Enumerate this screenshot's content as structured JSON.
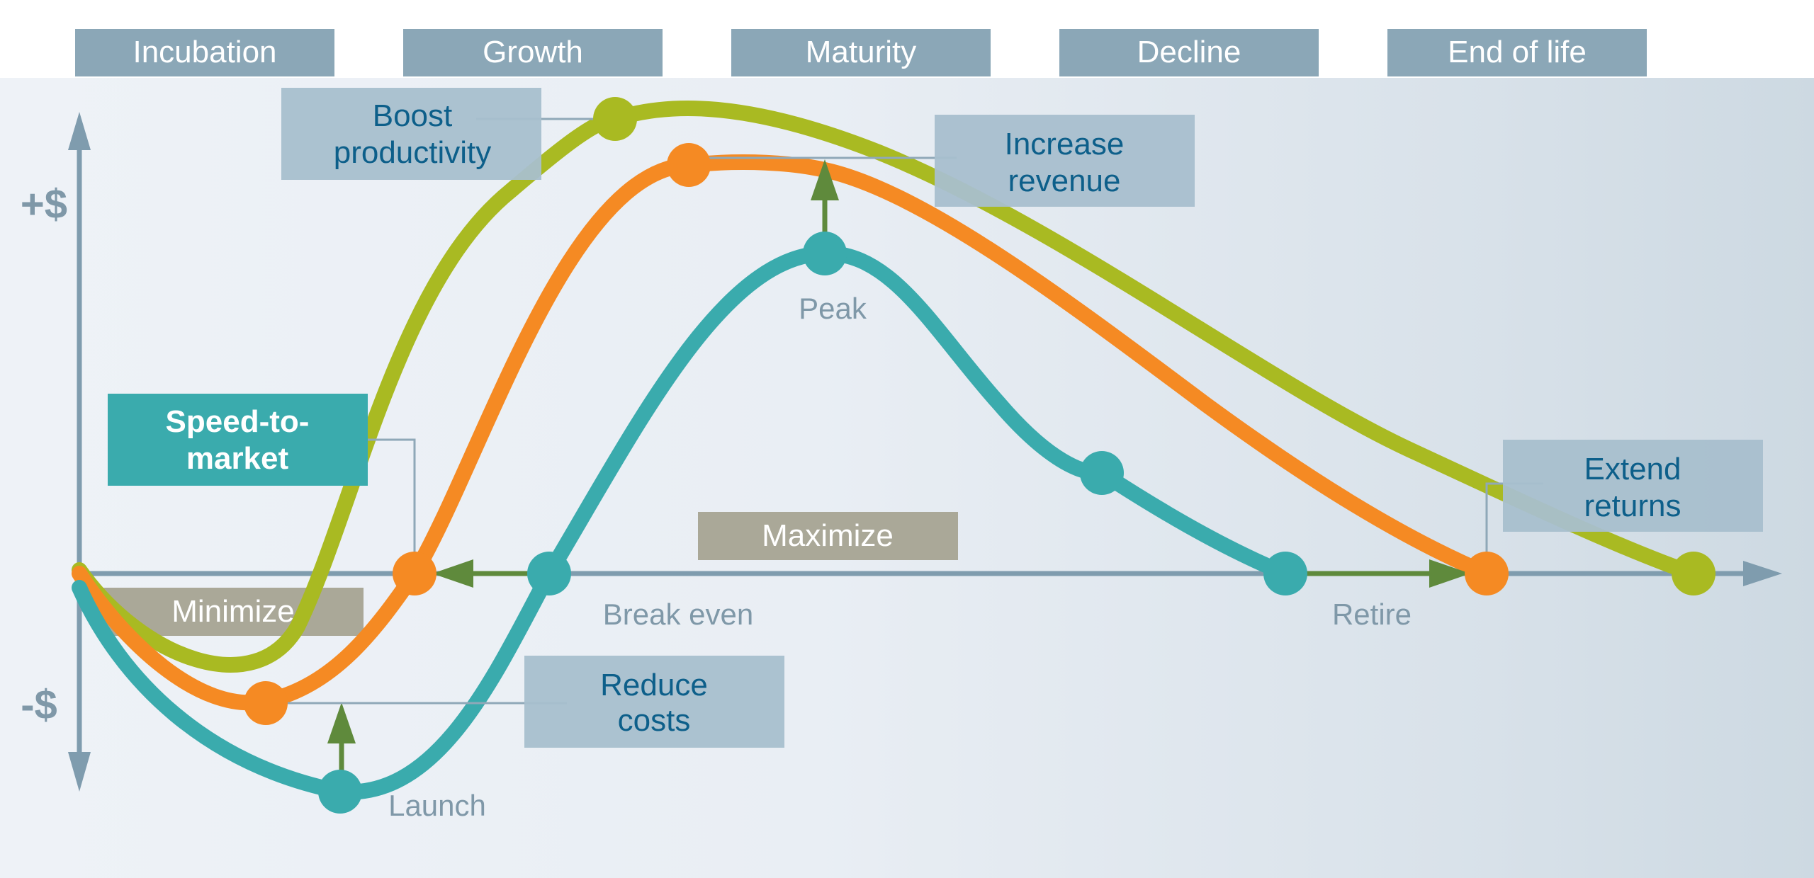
{
  "phases": [
    "Incubation",
    "Growth",
    "Maturity",
    "Decline",
    "End of life"
  ],
  "axis": {
    "plus": "+$",
    "minus": "-$"
  },
  "callouts": {
    "boost": [
      "Boost",
      "productivity"
    ],
    "increase": [
      "Increase",
      "revenue"
    ],
    "speed": [
      "Speed-to-",
      "market"
    ],
    "extend": [
      "Extend",
      "returns"
    ],
    "reduce": [
      "Reduce",
      "costs"
    ],
    "maximize": "Maximize",
    "minimize": "Minimize"
  },
  "point_labels": {
    "peak": "Peak",
    "break_even": "Break even",
    "retire": "Retire",
    "launch": "Launch"
  },
  "colors": {
    "phase_box": "#8ba7b7",
    "axis": "#7f9cae",
    "callout_box": "#a8bfcd",
    "callout_text": "#0d5f8a",
    "grey_box": "#aaa898",
    "teal": "#3aabad",
    "orange": "#f58a23",
    "green_curve": "#a9ba22",
    "arrow_green": "#5f8a3c",
    "label_grey": "#7f98a8"
  }
}
